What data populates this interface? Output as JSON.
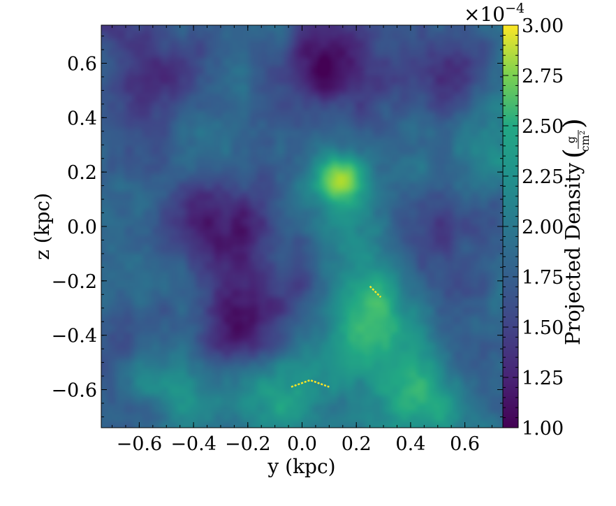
{
  "chart_data": {
    "type": "heatmap",
    "title": "",
    "xlabel": "y  (kpc)",
    "ylabel": "z  (kpc)",
    "xlim": [
      -0.74,
      0.74
    ],
    "ylim": [
      -0.74,
      0.74
    ],
    "x_ticks": [
      -0.6,
      -0.4,
      -0.2,
      0.0,
      0.2,
      0.4,
      0.6
    ],
    "y_ticks": [
      -0.6,
      -0.4,
      -0.2,
      0.0,
      0.2,
      0.4,
      0.6
    ],
    "x_tick_labels": [
      "−0.6",
      "−0.4",
      "−0.2",
      "0.0",
      "0.2",
      "0.4",
      "0.6"
    ],
    "y_tick_labels": [
      "−0.6",
      "−0.4",
      "−0.2",
      "0.0",
      "0.2",
      "0.4",
      "0.6"
    ],
    "colorbar": {
      "label": "Projected Density",
      "unit_numerator": "g",
      "unit_denominator": "cm",
      "unit_exponent": "2",
      "multiplier": "×10",
      "multiplier_exponent": "−4",
      "range": [
        1.0,
        3.0
      ],
      "ticks": [
        1.0,
        1.25,
        1.5,
        1.75,
        2.0,
        2.25,
        2.5,
        2.75,
        3.0
      ],
      "tick_labels": [
        "1.00",
        "1.25",
        "1.50",
        "1.75",
        "2.00",
        "2.25",
        "2.50",
        "2.75",
        "3.00"
      ],
      "colormap": "viridis"
    },
    "colors": {
      "min": "#440154",
      "mid": "#21918c",
      "max": "#fde725"
    },
    "field_features": [
      {
        "y": -0.28,
        "z": 0.02,
        "value": 1.05
      },
      {
        "y": -0.22,
        "z": -0.4,
        "value": 1.02
      },
      {
        "y": 0.1,
        "z": 0.6,
        "value": 1.08
      },
      {
        "y": -0.55,
        "z": 0.48,
        "value": 1.2
      },
      {
        "y": 0.4,
        "z": 0.0,
        "value": 1.15
      },
      {
        "y": 0.55,
        "z": 0.55,
        "value": 1.25
      },
      {
        "y": 0.0,
        "z": -0.1,
        "value": 1.35
      },
      {
        "y": 0.14,
        "z": 0.17,
        "value": 2.6
      },
      {
        "y": 0.2,
        "z": 0.05,
        "value": 2.2
      },
      {
        "y": 0.22,
        "z": -0.4,
        "value": 2.3
      },
      {
        "y": -0.08,
        "z": -0.62,
        "value": 2.3
      },
      {
        "y": 0.45,
        "z": -0.66,
        "value": 2.3
      },
      {
        "y": 0.68,
        "z": 0.3,
        "value": 2.0
      },
      {
        "y": -0.45,
        "z": -0.58,
        "value": 2.0
      },
      {
        "y": 0.28,
        "z": -0.24,
        "value": 2.1
      },
      {
        "y": -0.35,
        "z": 0.35,
        "value": 1.85
      },
      {
        "y": -0.6,
        "z": -0.2,
        "value": 1.7
      }
    ],
    "bright_streaks": [
      {
        "points": [
          [
            0.25,
            -0.22
          ],
          [
            0.27,
            -0.24
          ],
          [
            0.29,
            -0.26
          ]
        ],
        "value": 3.0
      },
      {
        "points": [
          [
            -0.04,
            -0.59
          ],
          [
            0.03,
            -0.565
          ],
          [
            0.1,
            -0.59
          ]
        ],
        "value": 3.0
      }
    ]
  }
}
